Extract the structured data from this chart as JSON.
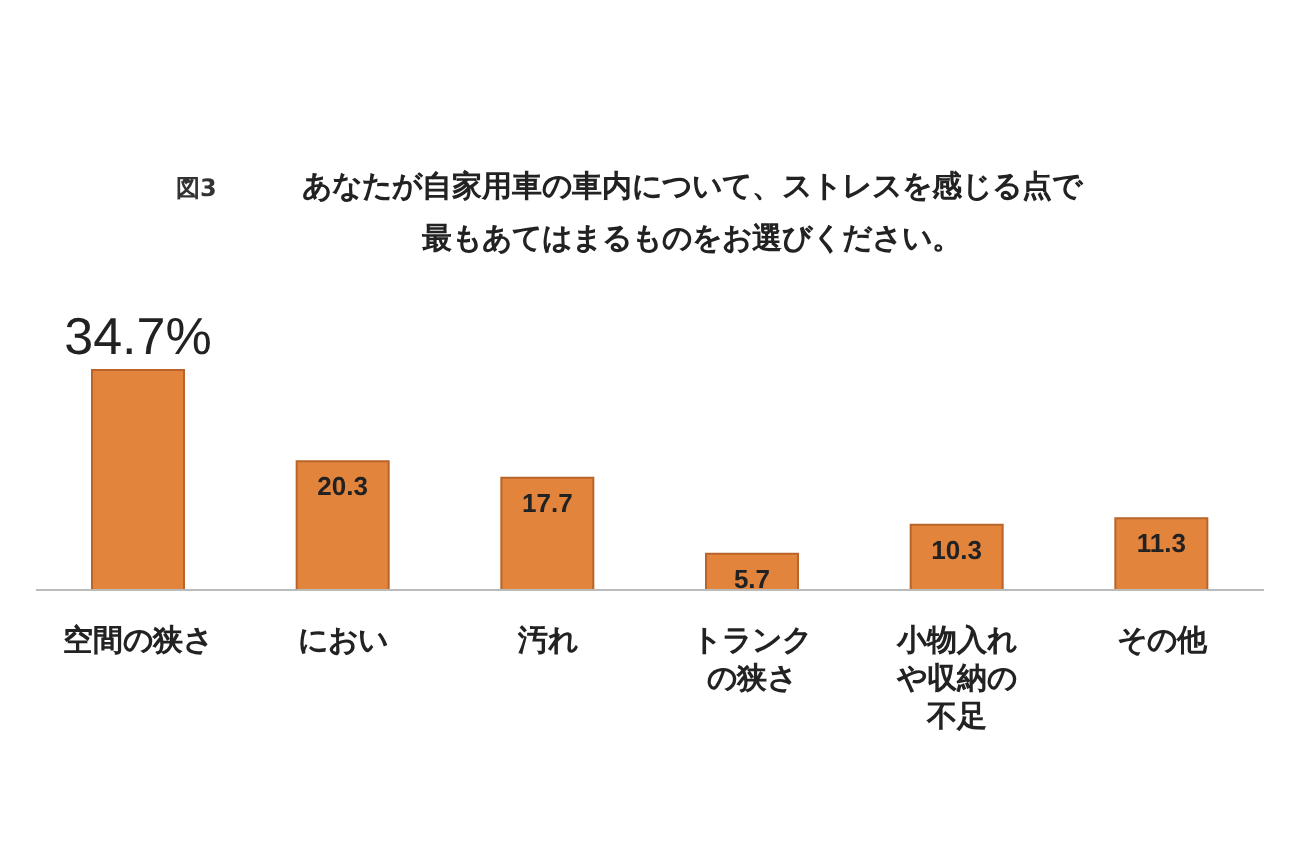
{
  "chart_data": {
    "type": "bar",
    "title": "あなたが自家用車の車内について、ストレスを感じる点で最もあてはまるものをお選びください。",
    "annotations": [
      "図3"
    ],
    "categories": [
      "空間の狭さ",
      "におい",
      "汚れ",
      "トランクの狭さ",
      "小物入れや収納の不足",
      "その他"
    ],
    "values": [
      34.7,
      20.3,
      17.7,
      5.7,
      10.3,
      11.3
    ],
    "value_labels": [
      "34.7%",
      "20.3",
      "17.7",
      "5.7",
      "10.3",
      "11.3"
    ],
    "color": "#e2843c"
  }
}
